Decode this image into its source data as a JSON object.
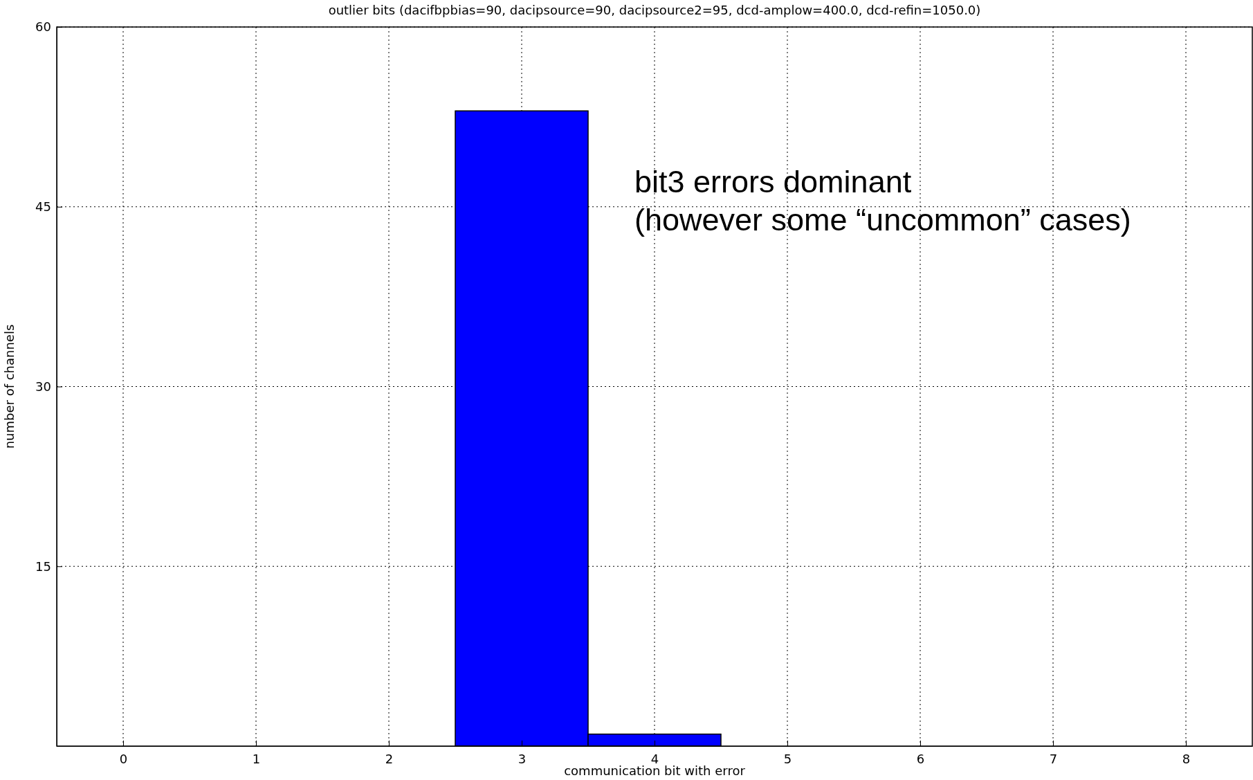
{
  "chart_data": {
    "type": "histogram",
    "title": "outlier bits (dacifbpbias=90, dacipsource=90, dacipsource2=95, dcd-amplow=400.0, dcd-refin=1050.0)",
    "xlabel": "communication bit with error",
    "ylabel": "number of channels",
    "bins": [
      -0.5,
      0.5,
      1.5,
      2.5,
      3.5,
      4.5,
      5.5,
      6.5,
      7.5,
      8.5
    ],
    "values": [
      0,
      0,
      0,
      53,
      1,
      0,
      0,
      0,
      0
    ],
    "color": "#0000ff",
    "xlim": [
      -0.5,
      8.5
    ],
    "xticks": [
      0,
      1,
      2,
      3,
      4,
      5,
      6,
      7,
      8
    ],
    "ylim": [
      0,
      60
    ],
    "yticks": [
      15,
      30,
      45,
      60
    ],
    "grid": true,
    "annotations": [
      "bit3 errors dominant\n(however some “uncommon” cases)"
    ]
  }
}
